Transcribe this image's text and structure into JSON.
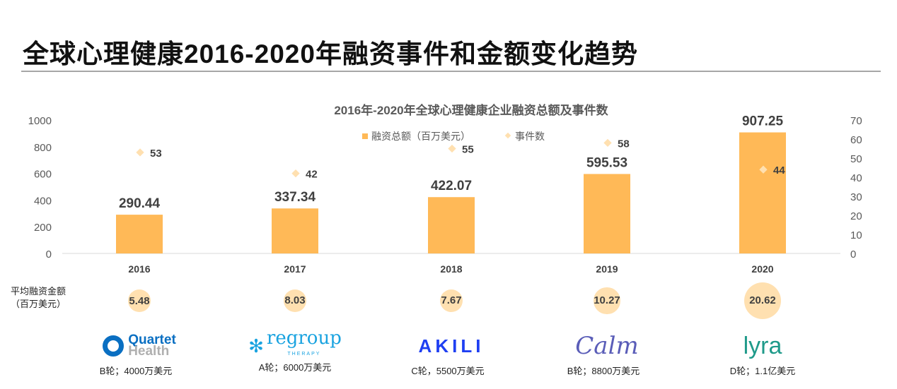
{
  "title": "全球心理健康2016-2020年融资事件和金额变化趋势",
  "chart_data": {
    "type": "bar",
    "title": "2016年-2020年全球心理健康企业融资总额及事件数",
    "categories": [
      "2016",
      "2017",
      "2018",
      "2019",
      "2020"
    ],
    "series": [
      {
        "name": "融资总额（百万美元）",
        "type": "bar",
        "axis": "left",
        "values": [
          290.44,
          337.34,
          422.07,
          595.53,
          907.25
        ],
        "color": "#FFB957"
      },
      {
        "name": "事件数",
        "type": "scatter",
        "axis": "right",
        "values": [
          53,
          42,
          55,
          58,
          44
        ],
        "color": "#FFE0B0"
      }
    ],
    "left_axis": {
      "ylim": [
        0,
        1000
      ],
      "ticks": [
        "0",
        "200",
        "400",
        "600",
        "800",
        "1000"
      ]
    },
    "right_axis": {
      "ylim": [
        0,
        70
      ],
      "ticks": [
        "0",
        "10",
        "20",
        "30",
        "40",
        "50",
        "60",
        "70"
      ]
    },
    "legend": "top-center"
  },
  "avg": {
    "label_line1": "平均融资金额",
    "label_line2": "（百万美元）",
    "values": [
      "5.48",
      "8.03",
      "7.67",
      "10.27",
      "20.62"
    ],
    "color": "#FFE0B0"
  },
  "companies": [
    {
      "name": "Quartet Health",
      "logo_line1": "Quartet",
      "logo_line2": "Health",
      "deal": "B轮；4000万美元"
    },
    {
      "name": "regroup",
      "logo_line1": "regroup",
      "logo_line2": "THERAPY",
      "deal": "A轮；6000万美元"
    },
    {
      "name": "AKILI",
      "logo_line1": "AKILI",
      "deal": "C轮，5500万美元"
    },
    {
      "name": "Calm",
      "logo_line1": "Calm",
      "deal": "B轮；8800万美元"
    },
    {
      "name": "lyra",
      "logo_line1": "lyra",
      "deal": "D轮；1.1亿美元"
    }
  ]
}
